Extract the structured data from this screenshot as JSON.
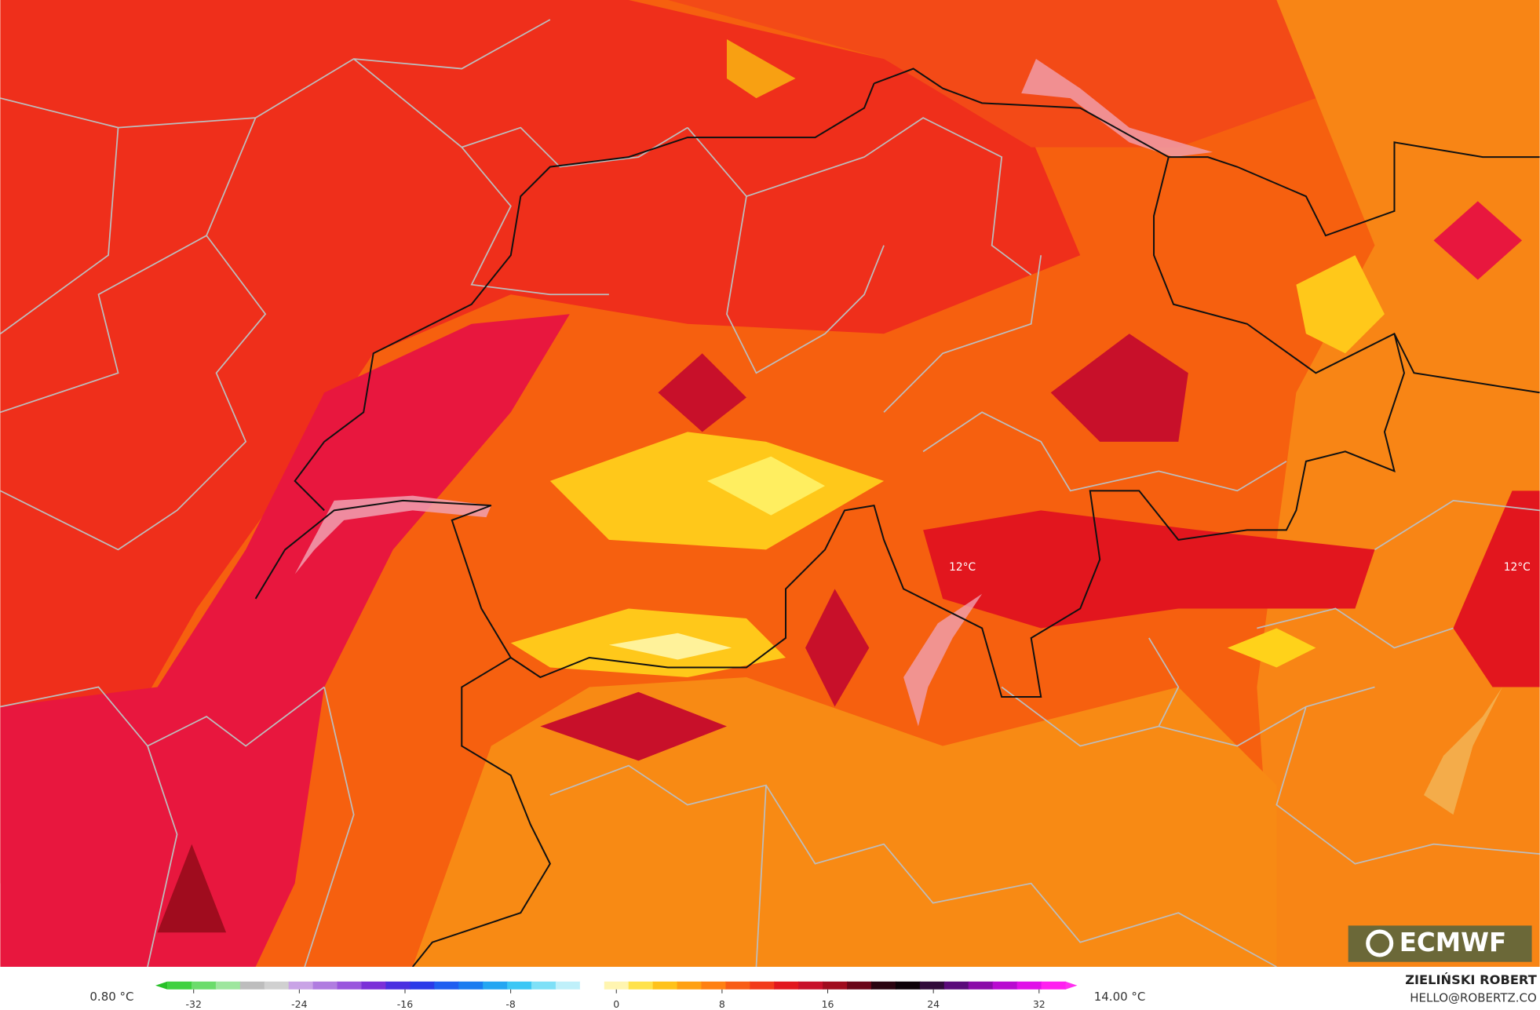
{
  "map": {
    "labels": [
      "12°C",
      "12°C"
    ],
    "logo": "ECMWF"
  },
  "colorbar": {
    "min_label": "0.80 °C",
    "max_label": "14.00 °C",
    "lim": [
      -34,
      34
    ],
    "ticks": [
      -32,
      -24,
      -16,
      -8,
      0,
      8,
      16,
      24,
      32
    ],
    "colors": [
      "#3fd13f",
      "#6bdc6b",
      "#9ee69e",
      "#bdbdbd",
      "#d0d0d0",
      "#c9a3e6",
      "#b07ce0",
      "#9955dd",
      "#7b2fd8",
      "#4a2fe0",
      "#2a3ae8",
      "#1f5ef0",
      "#1a7cf0",
      "#24a6f2",
      "#3cc7f5",
      "#7ee0f7",
      "#bff0fa",
      "#ffffff",
      "#fff5b0",
      "#ffe24a",
      "#ffc21a",
      "#ffa012",
      "#ff8012",
      "#f85c16",
      "#f23a1a",
      "#e2161e",
      "#c8102a",
      "#a00c1e",
      "#6a0618",
      "#2a0410",
      "#0d0208",
      "#300a3a",
      "#5a0a7a",
      "#8a0aa8",
      "#b80ad0",
      "#e010e8",
      "#ff20f0"
    ],
    "low_color": "#28c028",
    "high_color": "#ff30f0"
  },
  "credits": {
    "author": "ZIELIŃSKI ROBERT",
    "contact": "HELLO@ROBERTZ.CO"
  }
}
